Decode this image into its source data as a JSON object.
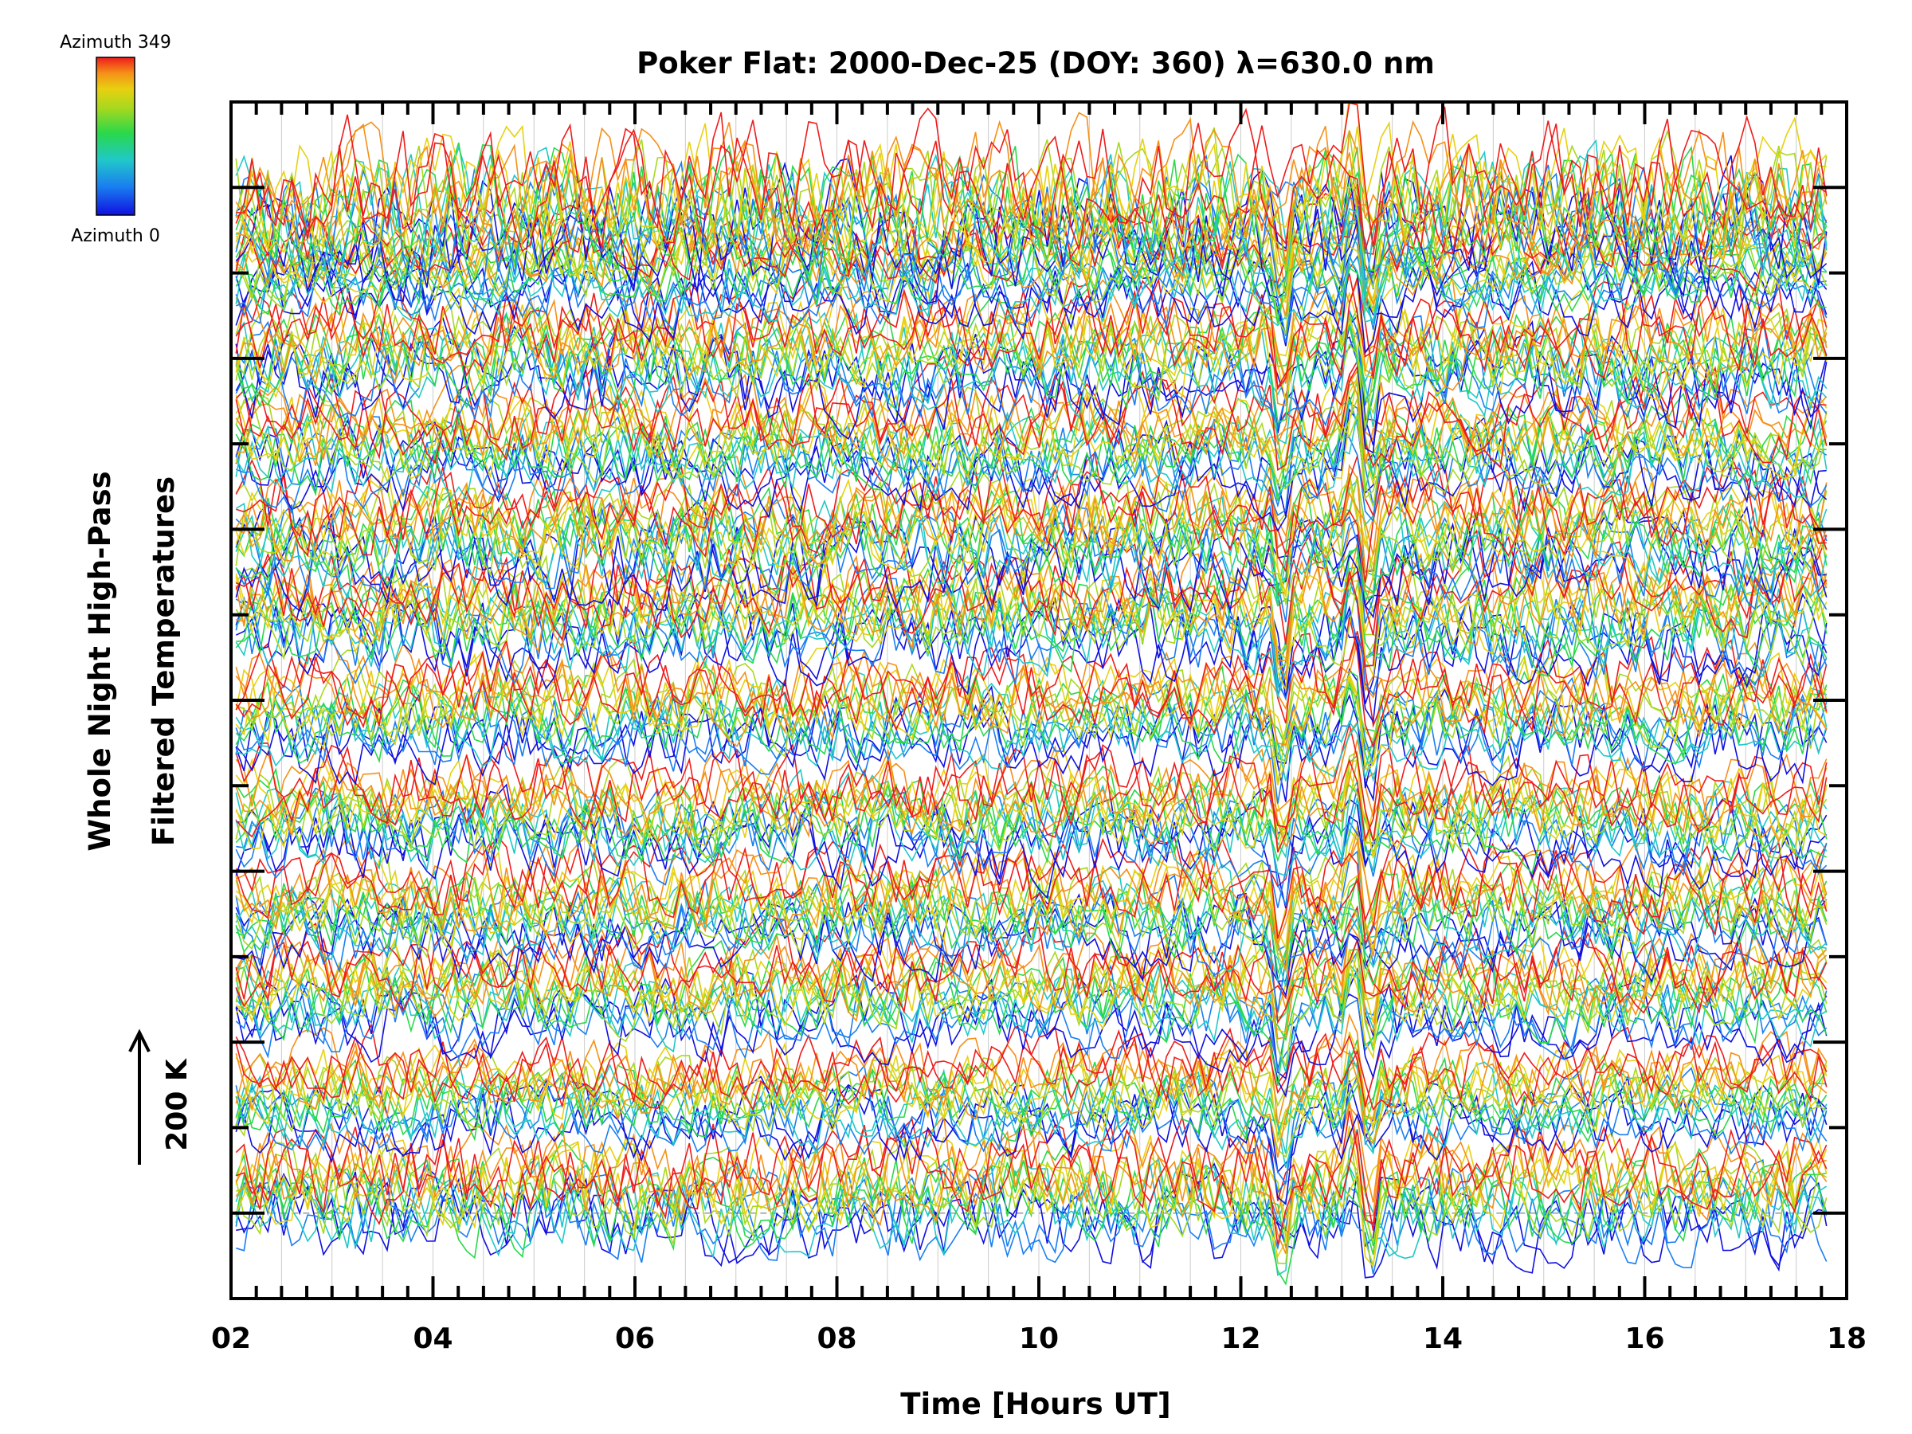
{
  "chart_data": {
    "type": "line",
    "title": "Poker Flat: 2000-Dec-25 (DOY: 360) λ=630.0 nm",
    "xlabel": "Time [Hours UT]",
    "ylabel_line1": "Whole Night High-Pass",
    "ylabel_line2": "Filtered Temperatures",
    "x_tick_labels": [
      "02",
      "04",
      "06",
      "08",
      "10",
      "12",
      "14",
      "16",
      "18"
    ],
    "x_ticks": [
      2,
      4,
      6,
      8,
      10,
      12,
      14,
      16,
      18
    ],
    "xlim": [
      2,
      18
    ],
    "ylim": [
      -1,
      13
    ],
    "colorbar": {
      "top_label": "Azimuth 349",
      "bottom_label": "Azimuth 0",
      "colormap": "rainbow",
      "azimuth_range": [
        0,
        349
      ]
    },
    "scale_bar": {
      "label": "200 K",
      "value_K": 200
    },
    "baseline": 0,
    "groups": [
      {
        "offset": 0.2,
        "amplitude": 0.55
      },
      {
        "offset": 1.35,
        "amplitude": 0.45
      },
      {
        "offset": 2.55,
        "amplitude": 0.48
      },
      {
        "offset": 3.55,
        "amplitude": 0.5
      },
      {
        "offset": 4.65,
        "amplitude": 0.5
      },
      {
        "offset": 5.85,
        "amplitude": 0.5
      },
      {
        "offset": 7.0,
        "amplitude": 0.55
      },
      {
        "offset": 7.95,
        "amplitude": 0.55
      },
      {
        "offset": 9.0,
        "amplitude": 0.5
      },
      {
        "offset": 10.05,
        "amplitude": 0.55
      },
      {
        "offset": 11.05,
        "amplitude": 0.45
      },
      {
        "offset": 11.75,
        "amplitude": 0.75
      }
    ],
    "colors": {
      "axis": "#000000",
      "grid": "#cccccc",
      "baseline": "#999999",
      "rainbow": [
        "#1010e0",
        "#1a7ef0",
        "#20c8c8",
        "#2ad84a",
        "#a8d81e",
        "#e8d010",
        "#f59018",
        "#ee1c1c"
      ]
    },
    "grid": true
  }
}
